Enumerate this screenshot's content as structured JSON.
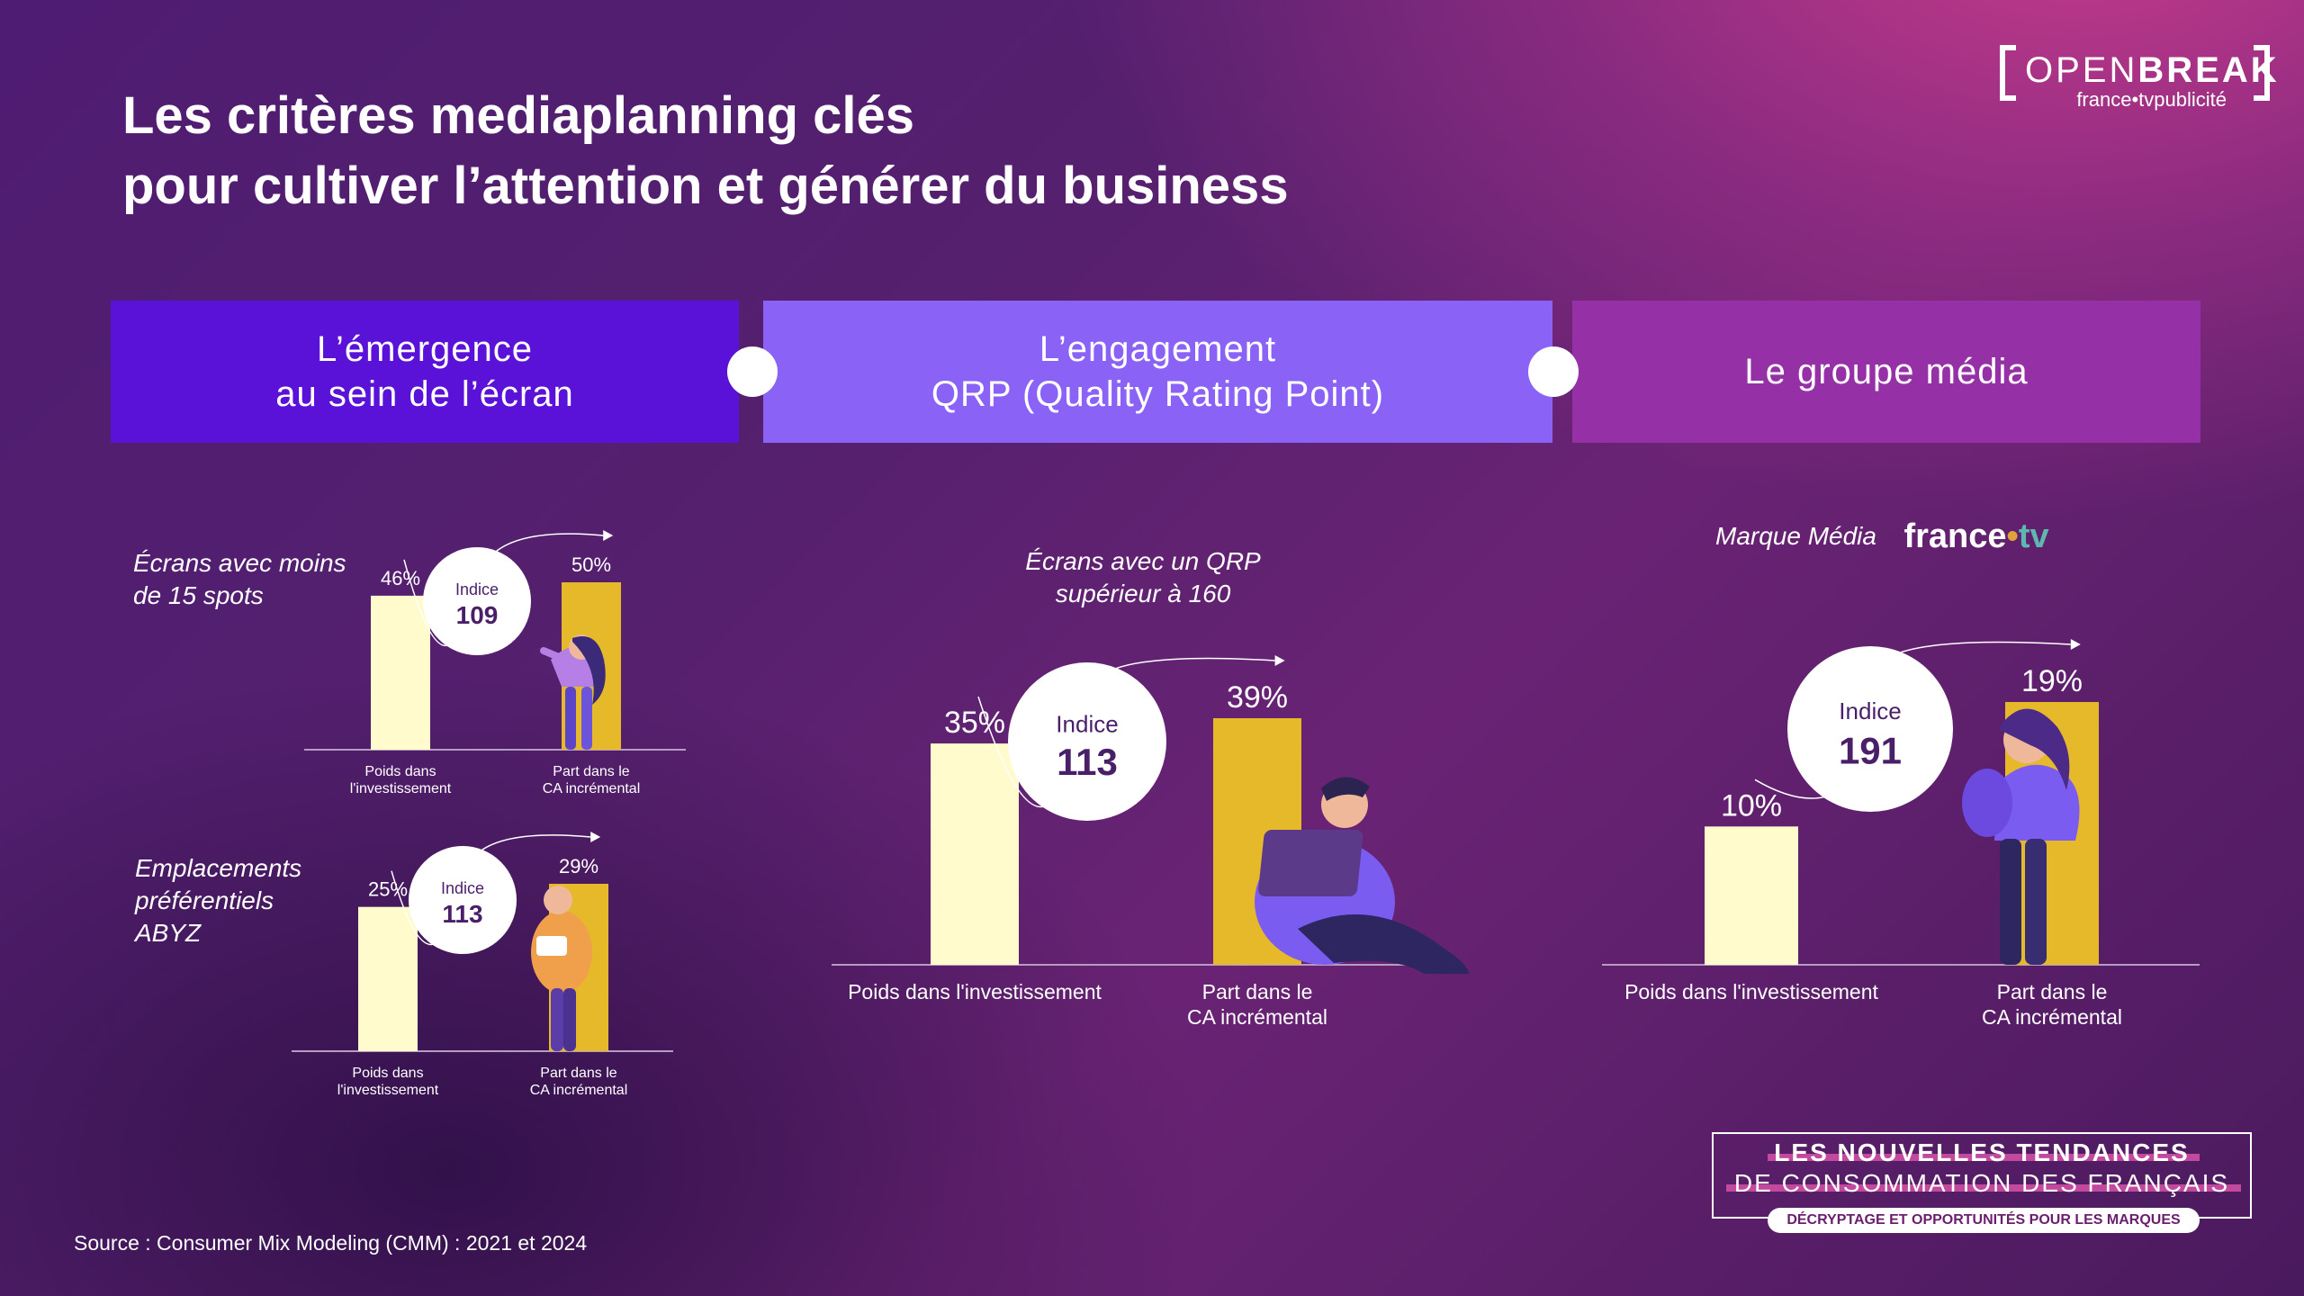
{
  "title": {
    "line1": "Les critères mediaplanning clés",
    "line2": "pour cultiver l’attention et générer du business"
  },
  "logo": {
    "word_light": "OPEN",
    "word_bold": "BREAK",
    "sub": "france•tvpublicité"
  },
  "banners": [
    {
      "line1": "L’émergence",
      "line2": "au sein de l’écran",
      "color": "#5a12d8"
    },
    {
      "line1": "L’engagement",
      "line2": "QRP (Quality Rating Point)",
      "color": "#8a63f6"
    },
    {
      "line1": "Le groupe média",
      "line2": "",
      "color": "#9530a6"
    }
  ],
  "brand_label": {
    "prefix": "Marque Média",
    "name_main": "france",
    "name_dot": "•",
    "name_tv": "tv"
  },
  "colors": {
    "investment_bar": "#fffbcc",
    "revenue_bar": "#e6b92b",
    "baseline": "#b69bc3"
  },
  "chart_data": [
    {
      "type": "bar",
      "subtitle_lines": [
        "Écrans avec moins",
        "de 15 spots"
      ],
      "categories": [
        [
          "Poids dans",
          "l'investissement"
        ],
        [
          "Part dans le",
          "CA incrémental"
        ]
      ],
      "values": [
        46,
        50
      ],
      "value_labels": [
        "46%",
        "50%"
      ],
      "index_label": "Indice",
      "index_value": "109",
      "ylim": [
        0,
        50
      ]
    },
    {
      "type": "bar",
      "subtitle_lines": [
        "Emplacements",
        "préférentiels",
        "ABYZ"
      ],
      "categories": [
        [
          "Poids dans",
          "l'investissement"
        ],
        [
          "Part dans le",
          "CA incrémental"
        ]
      ],
      "values": [
        25,
        29
      ],
      "value_labels": [
        "25%",
        "29%"
      ],
      "index_label": "Indice",
      "index_value": "113",
      "ylim": [
        0,
        29
      ]
    },
    {
      "type": "bar",
      "subtitle_lines": [
        "Écrans avec un QRP",
        "supérieur à 160"
      ],
      "categories": [
        [
          "Poids dans l'investissement"
        ],
        [
          "Part dans le",
          "CA incrémental"
        ]
      ],
      "values": [
        35,
        39
      ],
      "value_labels": [
        "35%",
        "39%"
      ],
      "index_label": "Indice",
      "index_value": "113",
      "ylim": [
        0,
        39
      ]
    },
    {
      "type": "bar",
      "subtitle_lines": [],
      "categories": [
        [
          "Poids dans l'investissement"
        ],
        [
          "Part dans le",
          "CA incrémental"
        ]
      ],
      "values": [
        10,
        19
      ],
      "value_labels": [
        "10%",
        "19%"
      ],
      "index_label": "Indice",
      "index_value": "191",
      "ylim": [
        0,
        19
      ]
    }
  ],
  "source": "Source : Consumer Mix Modeling (CMM) : 2021 et 2024",
  "promo": {
    "line1": "LES NOUVELLES TENDANCES",
    "line2": "DE CONSOMMATION DES FRANÇAIS",
    "pill": "DÉCRYPTAGE ET OPPORTUNITÉS POUR LES MARQUES"
  }
}
